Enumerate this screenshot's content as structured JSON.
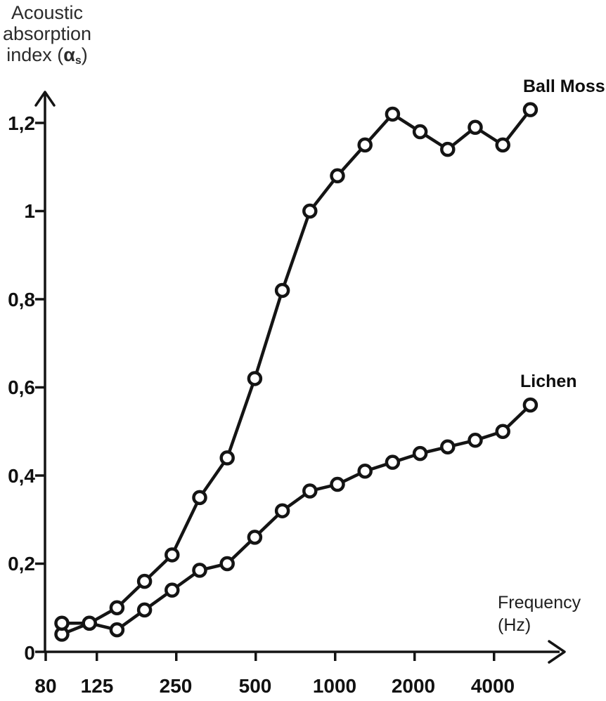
{
  "title": {
    "line1": "Acoustic",
    "line2": "absorption",
    "line3_prefix": "index (",
    "alpha": "α",
    "alpha_sub": "s",
    "line3_suffix": ")"
  },
  "x_axis_label": {
    "line1": "Frequency",
    "line2": "(Hz)"
  },
  "chart_data": {
    "type": "line",
    "title": "Acoustic absorption index (αs)",
    "xlabel": "Frequency (Hz)",
    "ylabel": "Acoustic absorption index (αs)",
    "x_scale": "log (third-octave bands)",
    "x": [
      100,
      125,
      160,
      200,
      250,
      315,
      400,
      500,
      630,
      800,
      1000,
      1250,
      1600,
      2000,
      2500,
      3150,
      4000,
      5000
    ],
    "series": [
      {
        "name": "Ball Moss",
        "marker": "circle",
        "values": [
          0.04,
          0.065,
          0.1,
          0.16,
          0.22,
          0.35,
          0.44,
          0.62,
          0.82,
          1.0,
          1.08,
          1.15,
          1.22,
          1.18,
          1.14,
          1.19,
          1.15,
          1.23
        ]
      },
      {
        "name": "Lichen",
        "marker": "circle",
        "values": [
          0.065,
          0.065,
          0.05,
          0.095,
          0.14,
          0.185,
          0.2,
          0.26,
          0.32,
          0.365,
          0.38,
          0.41,
          0.43,
          0.45,
          0.465,
          0.48,
          0.5,
          0.56
        ]
      }
    ],
    "x_tick_labels": [
      "80",
      "125",
      "250",
      "500",
      "1000",
      "2000",
      "4000"
    ],
    "x_tick_freqs": [
      80,
      125,
      250,
      500,
      1000,
      2000,
      4000
    ],
    "y_tick_labels": [
      "0",
      "0,2",
      "0,4",
      "0,6",
      "0,8",
      "1",
      "1,2"
    ],
    "y_tick_values": [
      0,
      0.2,
      0.4,
      0.6,
      0.8,
      1,
      1.2
    ],
    "ylim": [
      0,
      1.27
    ],
    "grid": false,
    "legend_position": "labels at line ends",
    "colors": {
      "ink": "#141414",
      "background": "#ffffff",
      "marker_fill": "#ffffff"
    }
  }
}
